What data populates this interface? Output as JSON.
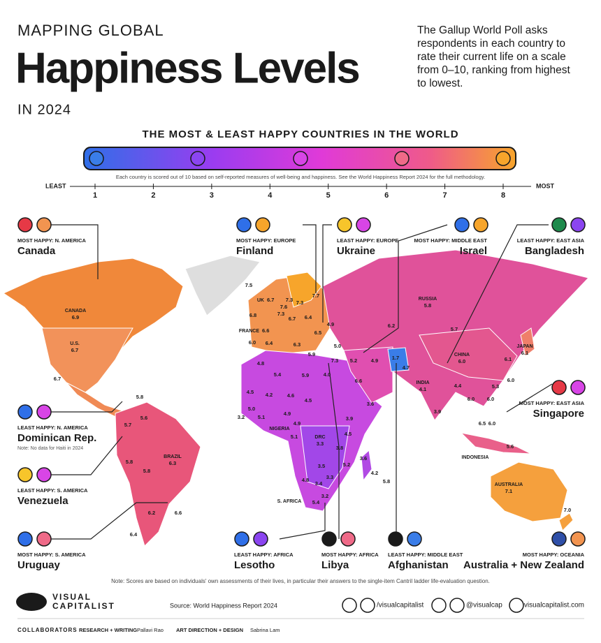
{
  "header": {
    "kicker": "MAPPING GLOBAL",
    "title": "Happiness Levels",
    "subtitle": "IN 2024",
    "description": [
      "The Gallup World Poll asks",
      "respondents in each country to",
      "rate their current life on a scale",
      "from 0–10, ranking from highest",
      "to lowest."
    ]
  },
  "scale": {
    "title": "THE MOST & LEAST HAPPY COUNTRIES IN THE WORLD",
    "note": "Each country is scored out of 10 based on self-reported measures of well-being and happiness. See the World Happiness Report 2024 for the full methodology.",
    "least": "LEAST",
    "most": "MOST",
    "ticks": [
      1,
      2,
      3,
      4,
      5,
      6,
      7,
      8
    ]
  },
  "callouts": [
    {
      "tag": "MOST HAPPY: N. AMERICA",
      "name": "Canada"
    },
    {
      "tag": "MOST HAPPY: EUROPE",
      "name": "Finland"
    },
    {
      "tag": "LEAST HAPPY: EUROPE",
      "name": "Ukraine"
    },
    {
      "tag": "MOST HAPPY: MIDDLE EAST",
      "name": "Israel"
    },
    {
      "tag": "LEAST HAPPY: EAST ASIA",
      "name": "Bangladesh"
    },
    {
      "tag": "LEAST HAPPY: N. AMERICA",
      "name": "Dominican Rep.",
      "note": "Note: No data for Haiti in 2024"
    },
    {
      "tag": "LEAST HAPPY: S. AMERICA",
      "name": "Venezuela"
    },
    {
      "tag": "MOST HAPPY: S. AMERICA",
      "name": "Uruguay"
    },
    {
      "tag": "LEAST HAPPY: AFRICA",
      "name": "Lesotho"
    },
    {
      "tag": "MOST HAPPY: AFRICA",
      "name": "Libya"
    },
    {
      "tag": "LEAST HAPPY: MIDDLE EAST",
      "name": "Afghanistan"
    },
    {
      "tag": "MOST HAPPY: OCEANIA",
      "name": "Australia + New Zealand"
    },
    {
      "tag": "MOST HAPPY: EAST ASIA",
      "name": "Singapore"
    }
  ],
  "map_labels": [
    {
      "label": "CANADA",
      "value": "6.9"
    },
    {
      "label": "U.S.",
      "value": "6.7"
    },
    {
      "value": "6.7"
    },
    {
      "value": "5.8"
    },
    {
      "value": "5.7"
    },
    {
      "value": "5.6"
    },
    {
      "label": "BRAZIL",
      "value": "6.3"
    },
    {
      "value": "5.8"
    },
    {
      "value": "5.8"
    },
    {
      "value": "6.2"
    },
    {
      "value": "6.6"
    },
    {
      "value": "6.4"
    },
    {
      "value": "7.5"
    },
    {
      "label": "UK",
      "value": "6.7"
    },
    {
      "value": "6.8"
    },
    {
      "label": "FRANCE",
      "value": "6.6"
    },
    {
      "value": "6.0"
    },
    {
      "value": "6.4"
    },
    {
      "value": "6.3"
    },
    {
      "value": "7.6"
    },
    {
      "value": "7.3"
    },
    {
      "value": "7.3"
    },
    {
      "value": "7.3"
    },
    {
      "value": "6.7"
    },
    {
      "value": "7.7"
    },
    {
      "value": "6.4"
    },
    {
      "value": "4.9"
    },
    {
      "value": "6.5"
    },
    {
      "value": "5.0"
    },
    {
      "value": "5.9"
    },
    {
      "value": "7.3"
    },
    {
      "value": "5.2"
    },
    {
      "value": "4.9"
    },
    {
      "value": "1.7"
    },
    {
      "value": "4.7"
    },
    {
      "value": "6.2"
    },
    {
      "label": "RUSSIA",
      "value": "5.8"
    },
    {
      "value": "5.7"
    },
    {
      "label": "CHINA",
      "value": "6.0"
    },
    {
      "label": "JAPAN",
      "value": "6.1"
    },
    {
      "value": "6.1"
    },
    {
      "value": "6.0"
    },
    {
      "value": "5.3"
    },
    {
      "label": "INDIA",
      "value": "4.1"
    },
    {
      "value": "4.4"
    },
    {
      "value": "6.0"
    },
    {
      "value": "6.0"
    },
    {
      "value": "3.9"
    },
    {
      "value": "6.5"
    },
    {
      "value": "6.0"
    },
    {
      "value": "5.6"
    },
    {
      "label": "INDONESIA"
    },
    {
      "label": "AUSTRALIA",
      "value": "7.1"
    },
    {
      "value": "7.0"
    },
    {
      "value": "6.6"
    },
    {
      "value": "3.6"
    },
    {
      "value": "4.0"
    },
    {
      "value": "5.9"
    },
    {
      "value": "5.4"
    },
    {
      "value": "4.8"
    },
    {
      "value": "4.5"
    },
    {
      "value": "4.2"
    },
    {
      "value": "4.6"
    },
    {
      "value": "4.5"
    },
    {
      "value": "5.0"
    },
    {
      "value": "5.1"
    },
    {
      "value": "4.9"
    },
    {
      "value": "3.2"
    },
    {
      "label": "NIGERIA"
    },
    {
      "value": "4.9"
    },
    {
      "value": "5.1"
    },
    {
      "value": "3.9"
    },
    {
      "value": "4.5"
    },
    {
      "label": "DRC",
      "value": "3.3"
    },
    {
      "value": "3.8"
    },
    {
      "value": "5.2"
    },
    {
      "value": "3.6"
    },
    {
      "value": "3.5"
    },
    {
      "value": "3.3"
    },
    {
      "value": "4.8"
    },
    {
      "value": "3.4"
    },
    {
      "value": "4.2"
    },
    {
      "value": "5.8"
    },
    {
      "label": "S. AFRICA"
    },
    {
      "value": "3.2"
    },
    {
      "value": "5.4"
    }
  ],
  "footer": {
    "note": "Note: Scores are based on individuals' own assessments of their lives, in particular their answers to the single-item Cantril ladder life-evaluation question.",
    "logo": [
      "VISUAL",
      "CAPITALIST"
    ],
    "source": "Source: World Happiness Report 2024",
    "handle1": "/visualcapitalist",
    "handle2": "@visualcap",
    "site": "visualcapitalist.com",
    "collaborators": "COLLABORATORS",
    "role1": "RESEARCH + WRITING",
    "person1": "Pallavi Rao",
    "role2": "ART DIRECTION + DESIGN",
    "person2": "Sabrina Lam"
  }
}
